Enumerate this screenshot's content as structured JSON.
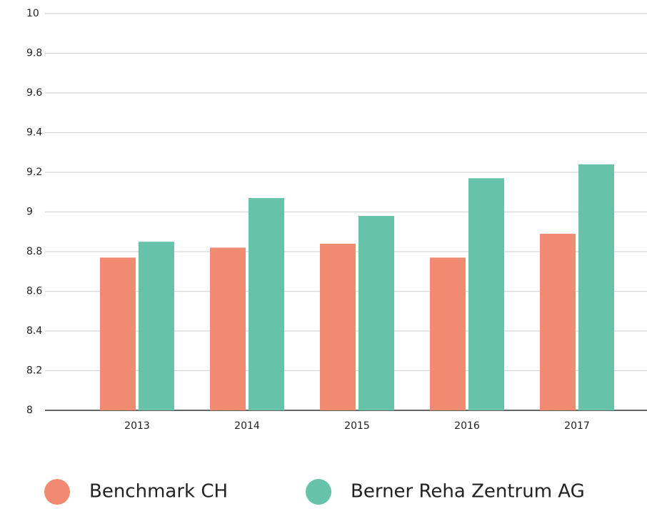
{
  "chart_data": {
    "type": "bar",
    "categories": [
      "2013",
      "2014",
      "2015",
      "2016",
      "2017"
    ],
    "series": [
      {
        "name": "Benchmark CH",
        "color": "#f08a70",
        "values": [
          8.77,
          8.82,
          8.84,
          8.77,
          8.89
        ]
      },
      {
        "name": "Berner Reha Zentrum AG",
        "color": "#66c2a9",
        "values": [
          8.85,
          9.07,
          8.98,
          9.17,
          9.24
        ]
      }
    ],
    "ylim": [
      8,
      10
    ],
    "yticks": [
      8,
      8.2,
      8.4,
      8.6,
      8.8,
      9,
      9.2,
      9.4,
      9.6,
      9.8,
      10
    ],
    "grid": true,
    "legend": "bottom"
  }
}
